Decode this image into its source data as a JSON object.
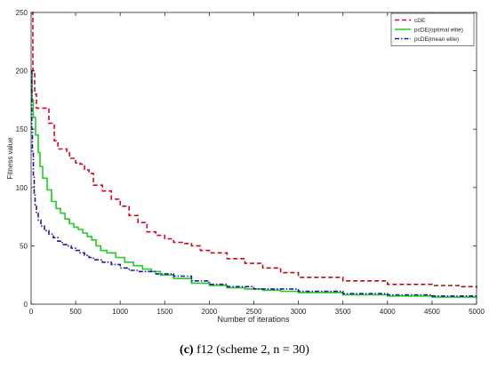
{
  "caption": {
    "label": "(c)",
    "text": "f12 (scheme 2, n = 30)"
  },
  "chart_data": {
    "type": "line",
    "xlabel": "Number of iterations",
    "ylabel": "Fitness value",
    "xlim": [
      0,
      5000
    ],
    "ylim": [
      0,
      250
    ],
    "xticks": [
      0,
      500,
      1000,
      1500,
      2000,
      2500,
      3000,
      3500,
      4000,
      4500,
      5000
    ],
    "yticks": [
      0,
      50,
      100,
      150,
      200,
      250
    ],
    "grid": false,
    "legend_position": "top-right",
    "series": [
      {
        "name": "cDE",
        "color": "#e8001c",
        "color_end": "#8b1a1a",
        "style": "dashed",
        "points": [
          [
            0,
            250
          ],
          [
            20,
            200
          ],
          [
            40,
            180
          ],
          [
            60,
            168
          ],
          [
            150,
            168
          ],
          [
            200,
            155
          ],
          [
            260,
            140
          ],
          [
            300,
            133
          ],
          [
            400,
            130
          ],
          [
            430,
            125
          ],
          [
            500,
            121
          ],
          [
            550,
            120
          ],
          [
            600,
            115
          ],
          [
            650,
            112
          ],
          [
            700,
            102
          ],
          [
            800,
            97
          ],
          [
            900,
            90
          ],
          [
            1000,
            84
          ],
          [
            1100,
            76
          ],
          [
            1200,
            70
          ],
          [
            1300,
            62
          ],
          [
            1400,
            59
          ],
          [
            1500,
            56
          ],
          [
            1600,
            53
          ],
          [
            1700,
            52
          ],
          [
            1800,
            50
          ],
          [
            1900,
            46
          ],
          [
            2000,
            44
          ],
          [
            2200,
            39
          ],
          [
            2400,
            35
          ],
          [
            2600,
            31
          ],
          [
            2800,
            27
          ],
          [
            3000,
            23
          ],
          [
            3500,
            20
          ],
          [
            4000,
            17
          ],
          [
            4500,
            16
          ],
          [
            4800,
            15
          ],
          [
            5000,
            14
          ]
        ]
      },
      {
        "name": "pcDE(optimal elite)",
        "color": "#22cc22",
        "style": "solid",
        "points": [
          [
            0,
            200
          ],
          [
            10,
            175
          ],
          [
            25,
            160
          ],
          [
            50,
            145
          ],
          [
            80,
            130
          ],
          [
            100,
            118
          ],
          [
            130,
            108
          ],
          [
            180,
            98
          ],
          [
            230,
            88
          ],
          [
            280,
            82
          ],
          [
            330,
            78
          ],
          [
            380,
            73
          ],
          [
            430,
            69
          ],
          [
            480,
            66
          ],
          [
            530,
            64
          ],
          [
            580,
            61
          ],
          [
            630,
            58
          ],
          [
            680,
            55
          ],
          [
            730,
            50
          ],
          [
            780,
            46
          ],
          [
            850,
            44
          ],
          [
            950,
            40
          ],
          [
            1050,
            36
          ],
          [
            1150,
            33
          ],
          [
            1250,
            30
          ],
          [
            1350,
            28
          ],
          [
            1450,
            25
          ],
          [
            1600,
            22
          ],
          [
            1800,
            18
          ],
          [
            2000,
            16
          ],
          [
            2200,
            14
          ],
          [
            2400,
            13
          ],
          [
            2600,
            12
          ],
          [
            2800,
            11
          ],
          [
            3000,
            10
          ],
          [
            3500,
            8
          ],
          [
            4000,
            7
          ],
          [
            4500,
            6
          ],
          [
            5000,
            5
          ]
        ]
      },
      {
        "name": "pcDE(mean elite)",
        "color": "#1a1aa0",
        "style": "dashdot",
        "points": [
          [
            0,
            200
          ],
          [
            8,
            150
          ],
          [
            15,
            130
          ],
          [
            25,
            110
          ],
          [
            35,
            95
          ],
          [
            45,
            85
          ],
          [
            60,
            78
          ],
          [
            80,
            72
          ],
          [
            110,
            67
          ],
          [
            150,
            63
          ],
          [
            200,
            60
          ],
          [
            250,
            57
          ],
          [
            300,
            54
          ],
          [
            350,
            51
          ],
          [
            400,
            50
          ],
          [
            450,
            48
          ],
          [
            500,
            46
          ],
          [
            550,
            44
          ],
          [
            600,
            42
          ],
          [
            650,
            40
          ],
          [
            700,
            38
          ],
          [
            800,
            36
          ],
          [
            900,
            34
          ],
          [
            1000,
            31
          ],
          [
            1100,
            29
          ],
          [
            1200,
            28
          ],
          [
            1400,
            26
          ],
          [
            1600,
            24
          ],
          [
            1800,
            20
          ],
          [
            2000,
            17
          ],
          [
            2200,
            15
          ],
          [
            2500,
            13
          ],
          [
            3000,
            11
          ],
          [
            3500,
            9
          ],
          [
            4000,
            8
          ],
          [
            4500,
            7
          ],
          [
            5000,
            6
          ]
        ]
      }
    ]
  }
}
